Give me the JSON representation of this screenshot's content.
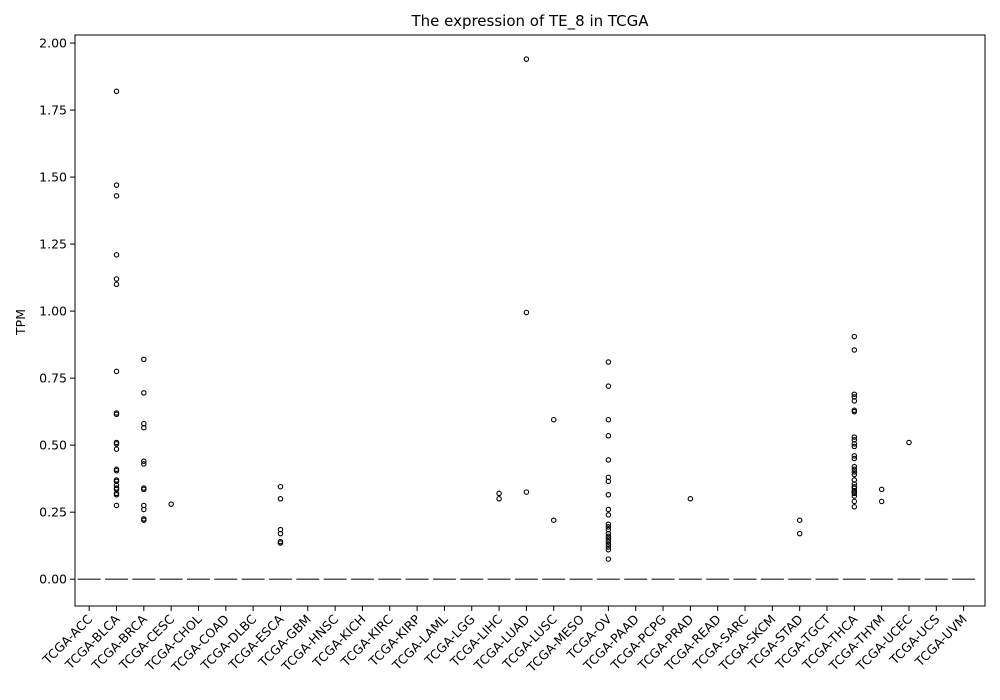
{
  "chart_data": {
    "type": "box",
    "title": "The expression of TE_8 in TCGA",
    "xlabel": "",
    "ylabel": "TPM",
    "ylim": [
      -0.1,
      2.03
    ],
    "yticks": [
      0.0,
      0.25,
      0.5,
      0.75,
      1.0,
      1.25,
      1.5,
      1.75,
      2.0
    ],
    "ytick_labels": [
      "0.00",
      "0.25",
      "0.50",
      "0.75",
      "1.00",
      "1.25",
      "1.50",
      "1.75",
      "2.00"
    ],
    "grid": false,
    "categories": [
      "TCGA-ACC",
      "TCGA-BLCA",
      "TCGA-BRCA",
      "TCGA-CESC",
      "TCGA-CHOL",
      "TCGA-COAD",
      "TCGA-DLBC",
      "TCGA-ESCA",
      "TCGA-GBM",
      "TCGA-HNSC",
      "TCGA-KICH",
      "TCGA-KIRC",
      "TCGA-KIRP",
      "TCGA-LAML",
      "TCGA-LGG",
      "TCGA-LIHC",
      "TCGA-LUAD",
      "TCGA-LUSC",
      "TCGA-MESO",
      "TCGA-OV",
      "TCGA-PAAD",
      "TCGA-PCPG",
      "TCGA-PRAD",
      "TCGA-READ",
      "TCGA-SARC",
      "TCGA-SKCM",
      "TCGA-STAD",
      "TCGA-TGCT",
      "TCGA-THCA",
      "TCGA-THYM",
      "TCGA-UCEC",
      "TCGA-UCS",
      "TCGA-UVM"
    ],
    "median": 0.0,
    "median_color": "#555555",
    "outliers": {
      "TCGA-BLCA": [
        1.82,
        1.47,
        1.43,
        1.21,
        1.12,
        1.1,
        0.775,
        0.62,
        0.615,
        0.51,
        0.505,
        0.485,
        0.41,
        0.405,
        0.37,
        0.365,
        0.35,
        0.34,
        0.335,
        0.32,
        0.315,
        0.275
      ],
      "TCGA-BRCA": [
        0.82,
        0.695,
        0.58,
        0.565,
        0.44,
        0.43,
        0.34,
        0.335,
        0.275,
        0.26,
        0.225,
        0.22
      ],
      "TCGA-CESC": [
        0.28
      ],
      "TCGA-ESCA": [
        0.345,
        0.3,
        0.185,
        0.17,
        0.14,
        0.135
      ],
      "TCGA-LIHC": [
        0.32,
        0.3
      ],
      "TCGA-LUAD": [
        1.94,
        0.995,
        0.325
      ],
      "TCGA-LUSC": [
        0.595,
        0.22
      ],
      "TCGA-OV": [
        0.81,
        0.72,
        0.595,
        0.535,
        0.445,
        0.38,
        0.365,
        0.315,
        0.26,
        0.24,
        0.205,
        0.195,
        0.185,
        0.17,
        0.16,
        0.15,
        0.14,
        0.13,
        0.12,
        0.11,
        0.075
      ],
      "TCGA-PRAD": [
        0.3
      ],
      "TCGA-STAD": [
        0.22,
        0.17
      ],
      "TCGA-THCA": [
        0.905,
        0.855,
        0.69,
        0.68,
        0.665,
        0.63,
        0.625,
        0.53,
        0.52,
        0.505,
        0.495,
        0.46,
        0.45,
        0.42,
        0.41,
        0.4,
        0.39,
        0.37,
        0.355,
        0.345,
        0.34,
        0.33,
        0.325,
        0.32,
        0.31,
        0.29,
        0.27
      ],
      "TCGA-THYM": [
        0.335,
        0.29
      ],
      "TCGA-UCEC": [
        0.51
      ]
    }
  }
}
